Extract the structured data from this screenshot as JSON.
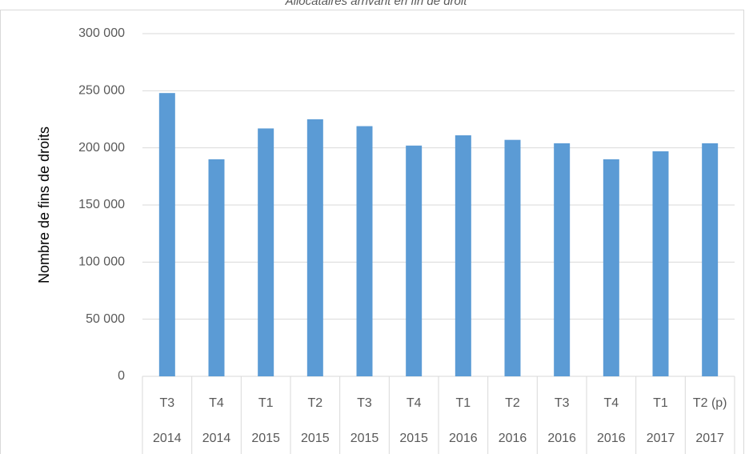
{
  "chart_data": {
    "type": "bar",
    "title": "Allocataires arrivant en fin de droit",
    "y_label": "Nombre de fins de droits",
    "categories": [
      "T3",
      "T4",
      "T1",
      "T2",
      "T3",
      "T4",
      "T1",
      "T2",
      "T3",
      "T4",
      "T1",
      "T2 (p)"
    ],
    "category_groups": [
      "2014",
      "2014",
      "2015",
      "2015",
      "2015",
      "2015",
      "2016",
      "2016",
      "2016",
      "2016",
      "2017",
      "2017"
    ],
    "values": [
      248000,
      190000,
      217000,
      225000,
      219000,
      202000,
      211000,
      207000,
      204000,
      190000,
      197000,
      204000
    ],
    "color": "#5b9bd5",
    "ylim": [
      0,
      300000
    ],
    "yticks": [
      0,
      {
        "value": 50000,
        "label": "50 000"
      },
      {
        "value": 100000,
        "label": "100 000"
      },
      {
        "value": 150000,
        "label": "150 000"
      },
      {
        "value": 200000,
        "label": "200 000"
      },
      {
        "value": 250000,
        "label": "250 000"
      },
      {
        "value": 300000,
        "label": "300 000"
      }
    ],
    "grid": true
  }
}
